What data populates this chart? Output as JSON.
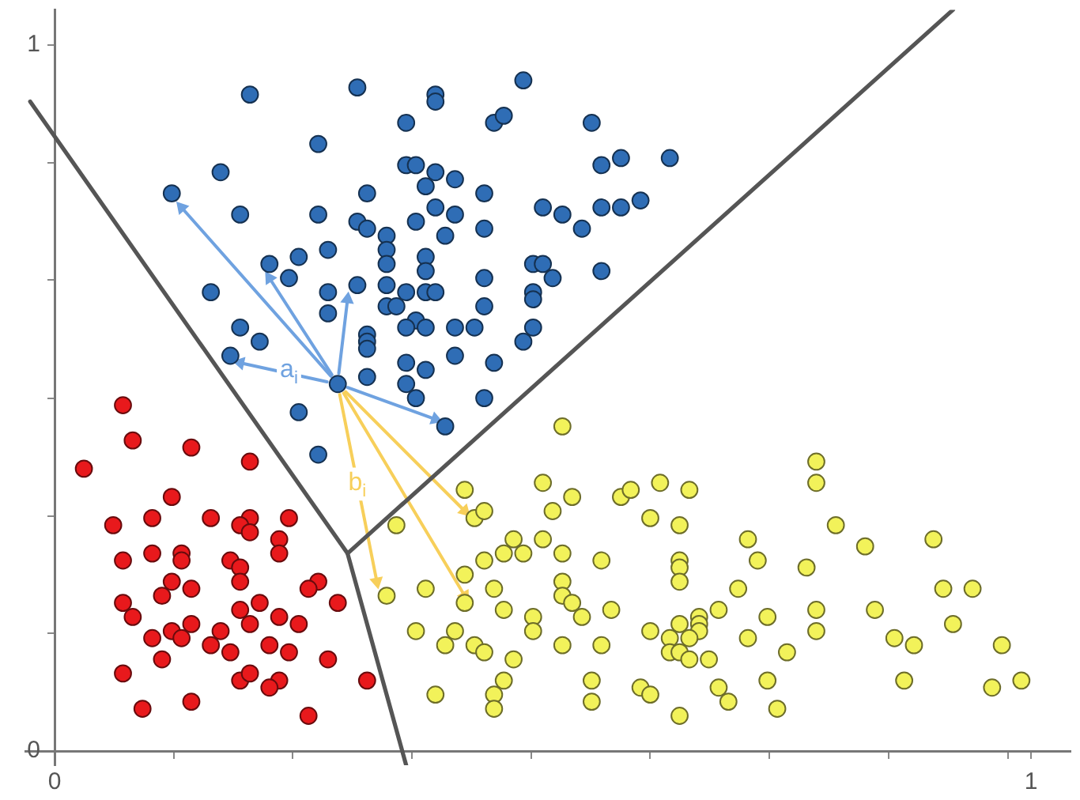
{
  "chart_data": {
    "type": "scatter",
    "xlim": [
      -0.03,
      1.04
    ],
    "ylim": [
      -0.02,
      1.05
    ],
    "xticks": [
      0,
      {
        "value": 0.122,
        "label": null
      },
      {
        "value": 0.244,
        "label": null
      },
      {
        "value": 0.366,
        "label": null
      },
      {
        "value": 0.488,
        "label": null
      },
      {
        "value": 0.61,
        "label": null
      },
      {
        "value": 0.732,
        "label": null
      },
      {
        "value": 0.854,
        "label": null
      },
      {
        "value": 0.976,
        "label": null
      },
      1
    ],
    "yticks": [
      0,
      {
        "value": 0.167,
        "label": null
      },
      {
        "value": 0.333,
        "label": null
      },
      {
        "value": 0.5,
        "label": null
      },
      {
        "value": 0.667,
        "label": null
      },
      {
        "value": 0.833,
        "label": null
      },
      1
    ],
    "grid": false,
    "legend": false,
    "marker": "circle",
    "annotations": [
      {
        "text": "a$_{i}$",
        "x": 0.24,
        "y": 0.54
      },
      {
        "text": "b$_{i}$",
        "x": 0.31,
        "y": 0.38
      }
    ],
    "series": [
      {
        "color": "#2f6db5",
        "x": [
          0.2,
          0.31,
          0.39,
          0.39,
          0.48,
          0.36,
          0.45,
          0.46,
          0.27,
          0.17,
          0.36,
          0.37,
          0.39,
          0.41,
          0.38,
          0.44,
          0.32,
          0.12,
          0.19,
          0.27,
          0.39,
          0.41,
          0.37,
          0.44,
          0.31,
          0.32,
          0.34,
          0.34,
          0.4,
          0.28,
          0.25,
          0.22,
          0.24,
          0.38,
          0.34,
          0.38,
          0.44,
          0.49,
          0.31,
          0.34,
          0.36,
          0.38,
          0.39,
          0.28,
          0.16,
          0.49,
          0.49,
          0.44,
          0.34,
          0.35,
          0.28,
          0.37,
          0.36,
          0.38,
          0.41,
          0.43,
          0.49,
          0.48,
          0.32,
          0.32,
          0.32,
          0.19,
          0.21,
          0.18,
          0.36,
          0.38,
          0.41,
          0.45,
          0.32,
          0.36,
          0.29,
          0.55,
          0.58,
          0.56,
          0.63,
          0.5,
          0.52,
          0.56,
          0.58,
          0.6,
          0.54,
          0.5,
          0.51,
          0.56,
          0.37,
          0.44,
          0.25,
          0.27,
          0.4
        ],
        "values": [
          0.93,
          0.94,
          0.93,
          0.92,
          0.95,
          0.89,
          0.89,
          0.9,
          0.86,
          0.82,
          0.83,
          0.83,
          0.82,
          0.81,
          0.8,
          0.79,
          0.79,
          0.79,
          0.76,
          0.76,
          0.77,
          0.76,
          0.75,
          0.74,
          0.75,
          0.74,
          0.73,
          0.71,
          0.73,
          0.71,
          0.7,
          0.69,
          0.67,
          0.7,
          0.69,
          0.68,
          0.67,
          0.69,
          0.66,
          0.66,
          0.65,
          0.65,
          0.65,
          0.65,
          0.65,
          0.65,
          0.64,
          0.63,
          0.63,
          0.63,
          0.62,
          0.61,
          0.6,
          0.6,
          0.6,
          0.6,
          0.6,
          0.58,
          0.59,
          0.58,
          0.57,
          0.6,
          0.58,
          0.56,
          0.55,
          0.54,
          0.56,
          0.55,
          0.53,
          0.52,
          0.52,
          0.89,
          0.84,
          0.83,
          0.84,
          0.77,
          0.76,
          0.77,
          0.77,
          0.78,
          0.74,
          0.69,
          0.67,
          0.68,
          0.5,
          0.5,
          0.48,
          0.42,
          0.46
        ]
      },
      {
        "color": "#e8191c",
        "x": [
          0.07,
          0.08,
          0.14,
          0.03,
          0.2,
          0.12,
          0.06,
          0.1,
          0.16,
          0.2,
          0.24,
          0.19,
          0.2,
          0.23,
          0.1,
          0.13,
          0.13,
          0.18,
          0.19,
          0.23,
          0.07,
          0.12,
          0.19,
          0.27,
          0.26,
          0.11,
          0.14,
          0.07,
          0.08,
          0.21,
          0.19,
          0.23,
          0.29,
          0.2,
          0.25,
          0.14,
          0.12,
          0.13,
          0.17,
          0.1,
          0.16,
          0.18,
          0.22,
          0.24,
          0.28,
          0.11,
          0.07,
          0.19,
          0.2,
          0.23,
          0.22,
          0.32,
          0.14,
          0.09,
          0.26
        ],
        "values": [
          0.49,
          0.44,
          0.43,
          0.4,
          0.41,
          0.36,
          0.32,
          0.33,
          0.33,
          0.33,
          0.33,
          0.32,
          0.31,
          0.3,
          0.28,
          0.28,
          0.27,
          0.27,
          0.26,
          0.28,
          0.27,
          0.24,
          0.24,
          0.24,
          0.23,
          0.22,
          0.23,
          0.21,
          0.19,
          0.21,
          0.2,
          0.19,
          0.21,
          0.18,
          0.18,
          0.18,
          0.17,
          0.16,
          0.17,
          0.16,
          0.15,
          0.14,
          0.15,
          0.14,
          0.13,
          0.13,
          0.11,
          0.1,
          0.11,
          0.1,
          0.09,
          0.1,
          0.07,
          0.06,
          0.05
        ]
      },
      {
        "color": "#f2f25a",
        "x": [
          0.42,
          0.43,
          0.44,
          0.35,
          0.47,
          0.48,
          0.46,
          0.5,
          0.5,
          0.44,
          0.42,
          0.45,
          0.38,
          0.34,
          0.42,
          0.46,
          0.49,
          0.37,
          0.41,
          0.49,
          0.4,
          0.43,
          0.44,
          0.47,
          0.46,
          0.45,
          0.39,
          0.45,
          0.52,
          0.78,
          0.78,
          0.53,
          0.58,
          0.59,
          0.62,
          0.65,
          0.51,
          0.61,
          0.64,
          0.8,
          0.83,
          0.9,
          0.71,
          0.52,
          0.56,
          0.72,
          0.77,
          0.64,
          0.64,
          0.64,
          0.7,
          0.52,
          0.52,
          0.53,
          0.54,
          0.57,
          0.91,
          0.94,
          0.84,
          0.78,
          0.73,
          0.68,
          0.66,
          0.66,
          0.66,
          0.64,
          0.61,
          0.63,
          0.65,
          0.92,
          0.78,
          0.71,
          0.86,
          0.88,
          0.97,
          0.52,
          0.56,
          0.63,
          0.64,
          0.65,
          0.67,
          0.75,
          0.55,
          0.6,
          0.61,
          0.68,
          0.73,
          0.87,
          0.96,
          0.99,
          0.55,
          0.69,
          0.74,
          0.64
        ],
        "values": [
          0.37,
          0.33,
          0.34,
          0.32,
          0.3,
          0.28,
          0.28,
          0.38,
          0.3,
          0.27,
          0.25,
          0.23,
          0.23,
          0.22,
          0.21,
          0.2,
          0.19,
          0.17,
          0.17,
          0.17,
          0.15,
          0.15,
          0.14,
          0.13,
          0.1,
          0.08,
          0.08,
          0.06,
          0.46,
          0.41,
          0.38,
          0.36,
          0.36,
          0.37,
          0.38,
          0.37,
          0.34,
          0.33,
          0.32,
          0.32,
          0.29,
          0.3,
          0.3,
          0.28,
          0.27,
          0.27,
          0.26,
          0.27,
          0.26,
          0.24,
          0.23,
          0.24,
          0.22,
          0.21,
          0.19,
          0.2,
          0.23,
          0.23,
          0.2,
          0.2,
          0.19,
          0.2,
          0.19,
          0.18,
          0.17,
          0.18,
          0.17,
          0.16,
          0.16,
          0.18,
          0.17,
          0.16,
          0.16,
          0.15,
          0.15,
          0.15,
          0.15,
          0.14,
          0.14,
          0.13,
          0.13,
          0.14,
          0.1,
          0.09,
          0.08,
          0.09,
          0.1,
          0.1,
          0.09,
          0.1,
          0.07,
          0.07,
          0.06,
          0.05
        ]
      },
      {
        "type": "line",
        "marker": "none",
        "color": "#555555",
        "x": [
          -0.025,
          0.3,
          0.36
        ],
        "values": [
          0.92,
          0.28,
          -0.02
        ]
      },
      {
        "type": "line",
        "marker": "none",
        "color": "#555555",
        "x": [
          0.3,
          0.92
        ],
        "values": [
          0.28,
          1.05
        ]
      },
      {
        "type": "line",
        "marker": "triangle",
        "color": "#6fa2e0",
        "x": [
          0.283,
          0.13
        ],
        "values": [
          0.531,
          0.77
        ]
      },
      {
        "type": "line",
        "marker": "triangle",
        "color": "#6fa2e0",
        "x": [
          0.284,
          0.22
        ],
        "values": [
          0.533,
          0.67
        ]
      },
      {
        "type": "line",
        "marker": "triangle",
        "color": "#6fa2e0",
        "x": [
          0.291,
          0.3
        ],
        "values": [
          0.535,
          0.64
        ]
      },
      {
        "type": "line",
        "marker": "triangle",
        "color": "#6fa2e0",
        "x": [
          0.279,
          0.19
        ],
        "values": [
          0.523,
          0.55
        ]
      },
      {
        "type": "line",
        "marker": "triangle",
        "color": "#6fa2e0",
        "x": [
          0.3,
          0.39
        ],
        "values": [
          0.515,
          0.47
        ]
      },
      {
        "type": "line",
        "marker": "triangle",
        "color": "#f7cf5a",
        "x": [
          0.292,
          0.33
        ],
        "values": [
          0.505,
          0.24
        ]
      },
      {
        "type": "line",
        "marker": "triangle",
        "color": "#f7cf5a",
        "x": [
          0.296,
          0.42
        ],
        "values": [
          0.507,
          0.22
        ]
      },
      {
        "type": "line",
        "marker": "triangle",
        "color": "#f7cf5a",
        "x": [
          0.298,
          0.42
        ],
        "values": [
          0.509,
          0.34
        ]
      }
    ]
  }
}
